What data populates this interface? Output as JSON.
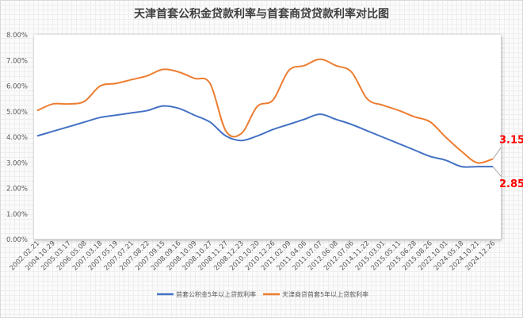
{
  "chart_data": {
    "type": "line",
    "title": "天津首套公积金贷款利率与首套商贷贷款利率对比图",
    "xlabel": "",
    "ylabel": "",
    "ylim": [
      0,
      8
    ],
    "y_ticks": [
      "0.00%",
      "1.00%",
      "2.00%",
      "3.00%",
      "4.00%",
      "5.00%",
      "6.00%",
      "7.00%",
      "8.00%"
    ],
    "grid": false,
    "legend_position": "bottom",
    "categories": [
      "2002.02.21",
      "2004.10.29",
      "2005.03.17",
      "2006.05.08",
      "2007.03.18",
      "2007.05.19",
      "2007.07.21",
      "2007.08.22",
      "2007.09.15",
      "2008.09.16",
      "2008.10.09",
      "2008.10.27",
      "2008.11.27",
      "2008.12.23",
      "2010.10.20",
      "2010.12.26",
      "2011.02.09",
      "2011.04.06",
      "2011.07.07",
      "2012.06.08",
      "2012.07.06",
      "2014.11.22",
      "2015.03.01",
      "2015.05.11",
      "2015.06.28",
      "2015.08.26",
      "2022.10.01",
      "2024.05.18",
      "2024.10.21",
      "2024.12.26"
    ],
    "series": [
      {
        "name": "首套公积金5年以上贷款利率",
        "color": "#4472c4",
        "values": [
          4.05,
          4.23,
          4.41,
          4.59,
          4.77,
          4.86,
          4.95,
          5.04,
          5.22,
          5.13,
          4.86,
          4.59,
          4.05,
          3.87,
          4.05,
          4.3,
          4.5,
          4.7,
          4.9,
          4.7,
          4.5,
          4.25,
          4.0,
          3.75,
          3.5,
          3.25,
          3.1,
          2.85,
          2.85,
          2.85
        ]
      },
      {
        "name": "天津商贷首套5年以上贷款利率",
        "color": "#ed7d31",
        "values": [
          5.04,
          5.3,
          5.3,
          5.4,
          6.0,
          6.1,
          6.25,
          6.4,
          6.65,
          6.55,
          6.3,
          6.1,
          4.25,
          4.15,
          5.2,
          5.45,
          6.6,
          6.8,
          7.05,
          6.8,
          6.55,
          5.5,
          5.25,
          5.05,
          4.8,
          4.6,
          4.0,
          3.45,
          3.0,
          3.15
        ]
      }
    ],
    "annotations": [
      {
        "series": 1,
        "label": "3.15%"
      },
      {
        "series": 0,
        "label": "2.85%"
      }
    ]
  }
}
